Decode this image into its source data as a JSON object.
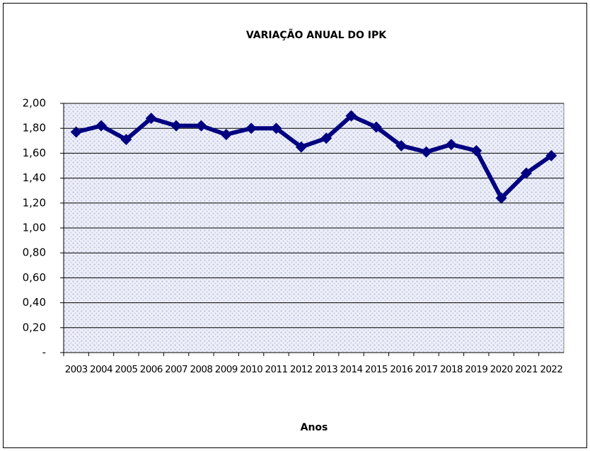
{
  "chart_data": {
    "type": "line",
    "title": "VARIAÇÃO ANUAL DO IPK",
    "x_label": "Anos",
    "categories": [
      "2003",
      "2004",
      "2005",
      "2006",
      "2007",
      "2008",
      "2009",
      "2010",
      "2011",
      "2012",
      "2013",
      "2014",
      "2015",
      "2016",
      "2017",
      "2018",
      "2019",
      "2020",
      "2021",
      "2022"
    ],
    "values": [
      1.77,
      1.82,
      1.71,
      1.88,
      1.82,
      1.82,
      1.75,
      1.8,
      1.8,
      1.65,
      1.72,
      1.9,
      1.81,
      1.66,
      1.61,
      1.67,
      1.62,
      1.24,
      1.44,
      1.58
    ],
    "color": "#000080",
    "ylim": [
      0,
      2
    ],
    "yticks": [
      {
        "value": 0,
        "label": "-"
      },
      {
        "value": 0.2,
        "label": "0,20"
      },
      {
        "value": 0.4,
        "label": "0,40"
      },
      {
        "value": 0.6,
        "label": "0,60"
      },
      {
        "value": 0.8,
        "label": "0,80"
      },
      {
        "value": 1,
        "label": "1,00"
      },
      {
        "value": 1.2,
        "label": "1,20"
      },
      {
        "value": 1.4,
        "label": "1,40"
      },
      {
        "value": 1.6,
        "label": "1,60"
      },
      {
        "value": 1.8,
        "label": "1,80"
      },
      {
        "value": 2,
        "label": "2,00"
      }
    ],
    "grid": true
  }
}
